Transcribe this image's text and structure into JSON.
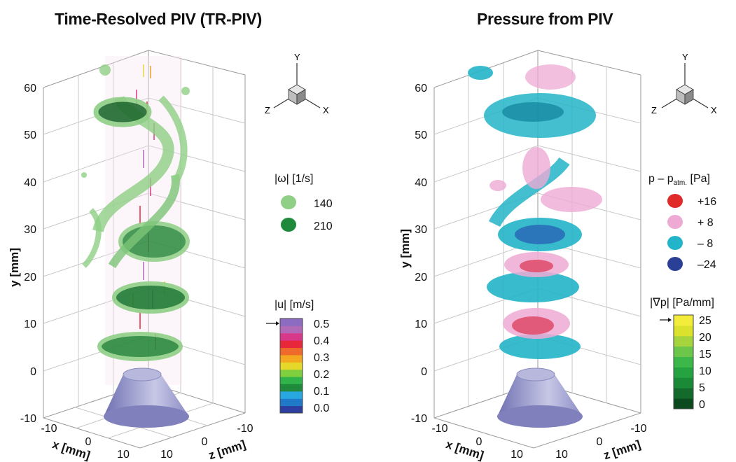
{
  "panels": [
    {
      "title": "Time-Resolved PIV (TR-PIV)",
      "y_ticks": [
        "60",
        "50",
        "40",
        "30",
        "20",
        "10",
        "0",
        "-10"
      ],
      "y_label": "y [mm]",
      "x_ticks": [
        "-10",
        "0",
        "10"
      ],
      "x_label": "x [mm]",
      "z_ticks": [
        "-10",
        "0",
        "10"
      ],
      "z_label": "z [mm]",
      "triad": {
        "y": "Y",
        "z": "Z",
        "x": "X"
      },
      "legend_iso": {
        "title": "|ω|  [1/s]",
        "items": [
          {
            "label": "140",
            "color": "#8fcf86"
          },
          {
            "label": "210",
            "color": "#1f8a3c"
          }
        ]
      },
      "colorbar": {
        "title": "|u|  [m/s]",
        "ticks": [
          "0.5",
          "0.4",
          "0.3",
          "0.2",
          "0.1",
          "0.0"
        ],
        "colors": [
          "#2c3fa0",
          "#1f78c8",
          "#28a8e0",
          "#1f8a3c",
          "#2fb34a",
          "#7fcf3f",
          "#e6d82a",
          "#f3a81f",
          "#ee6a2a",
          "#e8283a",
          "#d8388a",
          "#b06ab8",
          "#8c6cc0"
        ]
      }
    },
    {
      "title": "Pressure from PIV",
      "y_ticks": [
        "60",
        "50",
        "40",
        "30",
        "20",
        "10",
        "0",
        "-10"
      ],
      "y_label": "y [mm]",
      "x_ticks": [
        "-10",
        "0",
        "10"
      ],
      "x_label": "x [mm]",
      "z_ticks": [
        "-10",
        "0",
        "10"
      ],
      "z_label": "z [mm]",
      "triad": {
        "y": "Y",
        "z": "Z",
        "x": "X"
      },
      "legend_iso": {
        "title": "p – p",
        "title_sub": "atm.",
        "title_unit": " [Pa]",
        "items": [
          {
            "label": "+16",
            "color": "#e02a2a"
          },
          {
            "label": "+ 8",
            "color": "#eeaad4"
          },
          {
            "label": "– 8",
            "color": "#22b4c8"
          },
          {
            "label": "–24",
            "color": "#2a3f96"
          }
        ]
      },
      "colorbar": {
        "title": "|∇p| [Pa/mm]",
        "ticks": [
          "25",
          "20",
          "15",
          "10",
          "5",
          "0"
        ],
        "colors": [
          "#0b4a1e",
          "#136a2a",
          "#1a8a36",
          "#25a340",
          "#3cb84a",
          "#6cc64a",
          "#a6d43c",
          "#dbe22e",
          "#f3ec3a"
        ]
      }
    }
  ],
  "colors": {
    "nozzle_top": "#b7b8dc",
    "nozzle_side": "#7f80bc",
    "grid": "#9a9a9a"
  }
}
